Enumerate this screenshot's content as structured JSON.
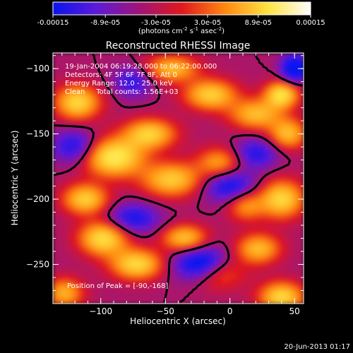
{
  "chart_data": {
    "type": "heatmap",
    "title": "Reconstructed RHESSI Image",
    "xlabel": "Heliocentric X (arcsec)",
    "ylabel": "Heliocentric Y (arcsec)",
    "xlim": [
      -137,
      57
    ],
    "ylim": [
      -280,
      -88
    ],
    "xticks": [
      -100,
      -50,
      0,
      50
    ],
    "yticks": [
      -100,
      -150,
      -200,
      -250
    ],
    "colorbar": {
      "range": [
        -0.00015,
        0.00015
      ],
      "tick_labels": [
        "-0.00015",
        "-8.9e-05",
        "-3.0e-05",
        "3.0e-05",
        "8.9e-05",
        "0.00015"
      ],
      "unit_label_parts": [
        "(photons cm",
        "-2",
        " s",
        "-1",
        " asec",
        "-2",
        ")"
      ],
      "colors": [
        "#0a14f0",
        "#5c1ad8",
        "#a01478",
        "#e0181e",
        "#ff8810",
        "#ffe240",
        "#ffffff"
      ]
    },
    "annotations": [
      "19-Jan-2004 06:19:28.000 to 06:22:00.000",
      "Detectors: 4F 5F 6F 7F 8F, Att 0",
      "Energy Range: 12.0 - 25.0 keV",
      "Clean     Total counts: 1.56E+03"
    ],
    "peak_text": "Position of Peak = [-90,-168]",
    "peak": {
      "x": -90,
      "y": -168
    },
    "marker": {
      "x": 50,
      "y": -100,
      "color": "#0a14f0"
    },
    "blobs": [
      {
        "x": -90,
        "y": -168,
        "v": 1.0,
        "sx": 16,
        "sy": 10
      },
      {
        "x": -62,
        "y": -150,
        "v": 0.8,
        "sx": 14,
        "sy": 8
      },
      {
        "x": -118,
        "y": -126,
        "v": 0.85,
        "sx": 12,
        "sy": 9
      },
      {
        "x": -15,
        "y": -120,
        "v": 0.8,
        "sx": 14,
        "sy": 8
      },
      {
        "x": 20,
        "y": -135,
        "v": 0.7,
        "sx": 14,
        "sy": 8
      },
      {
        "x": -45,
        "y": -185,
        "v": 0.78,
        "sx": 16,
        "sy": 9
      },
      {
        "x": -8,
        "y": -172,
        "v": 0.6,
        "sx": 12,
        "sy": 8
      },
      {
        "x": -112,
        "y": -200,
        "v": 0.8,
        "sx": 12,
        "sy": 8
      },
      {
        "x": -98,
        "y": -230,
        "v": 0.9,
        "sx": 13,
        "sy": 9
      },
      {
        "x": -72,
        "y": -250,
        "v": 0.85,
        "sx": 14,
        "sy": 8
      },
      {
        "x": -35,
        "y": -230,
        "v": 0.75,
        "sx": 12,
        "sy": 7
      },
      {
        "x": -10,
        "y": -255,
        "v": 0.7,
        "sx": 14,
        "sy": 9
      },
      {
        "x": 22,
        "y": -238,
        "v": 0.7,
        "sx": 12,
        "sy": 8
      },
      {
        "x": 40,
        "y": -200,
        "v": 0.85,
        "sx": 12,
        "sy": 10
      },
      {
        "x": 45,
        "y": -150,
        "v": 0.7,
        "sx": 10,
        "sy": 8
      },
      {
        "x": 40,
        "y": -120,
        "v": 0.9,
        "sx": 9,
        "sy": 7
      },
      {
        "x": 40,
        "y": -275,
        "v": 0.85,
        "sx": 12,
        "sy": 8
      },
      {
        "x": -45,
        "y": -100,
        "v": 0.7,
        "sx": 14,
        "sy": 7
      },
      {
        "x": -128,
        "y": -272,
        "v": 0.65,
        "sx": 10,
        "sy": 8
      },
      {
        "x": 12,
        "y": -205,
        "v": 0.55,
        "sx": 10,
        "sy": 8
      },
      {
        "x": -20,
        "y": -250,
        "v": -1.0,
        "sx": 15,
        "sy": 9
      },
      {
        "x": 0,
        "y": -190,
        "v": -0.6,
        "sx": 14,
        "sy": 9
      },
      {
        "x": -75,
        "y": -215,
        "v": -0.55,
        "sx": 14,
        "sy": 8
      },
      {
        "x": -120,
        "y": -160,
        "v": -0.55,
        "sx": 12,
        "sy": 9
      },
      {
        "x": 50,
        "y": -100,
        "v": -0.9,
        "sx": 7,
        "sy": 7
      },
      {
        "x": -75,
        "y": -110,
        "v": -0.45,
        "sx": 10,
        "sy": 8
      },
      {
        "x": 20,
        "y": -165,
        "v": -0.5,
        "sx": 12,
        "sy": 8
      }
    ]
  },
  "footer": {
    "date": "20-Jun-2013 01:17"
  }
}
